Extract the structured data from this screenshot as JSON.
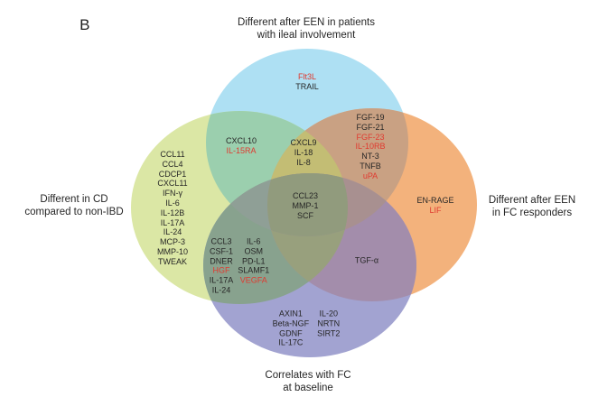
{
  "figure_label": "B",
  "colors": {
    "set_top_blue": "#aee0f3",
    "set_left_green": "#dbe7a5",
    "set_right_orange": "#f3b27c",
    "set_bottom_purple": "#a2a3d1",
    "overlap_blue_green": "#9bcfae",
    "overlap_blue_orange": "#c9a183",
    "overlap_green_purple": "#88a28e",
    "overlap_orange_purple": "#a38dab",
    "overlap_blue_green_orange": "#c3bd74",
    "overlap_green_orange_purple": "#98a07d",
    "overlap_blue_green_purple": "#8f9f96",
    "overlap_blue_orange_purple": "#a89090",
    "overlap_center_all": "#919b7d",
    "text_black": "#262626",
    "text_red": "#e0392f"
  },
  "set_labels": {
    "top": [
      "Different after EEN in patients",
      "with ileal involvement"
    ],
    "left": [
      "Different in CD",
      "compared to non-IBD"
    ],
    "right": [
      "Different after EEN",
      "in FC responders"
    ],
    "bottom": [
      "Correlates with FC",
      "at baseline"
    ]
  },
  "regions": {
    "top_only": [
      [
        {
          "t": "Flt3L",
          "red": true
        },
        {
          "t": "TRAIL"
        }
      ]
    ],
    "top_left": [
      [
        {
          "t": "CXCL10"
        },
        {
          "t": "IL-15RA",
          "red": true
        }
      ]
    ],
    "top_left_right": [
      [
        {
          "t": "CXCL9"
        },
        {
          "t": "IL-18"
        },
        {
          "t": "IL-8"
        }
      ]
    ],
    "top_right": [
      [
        {
          "t": "FGF-19"
        },
        {
          "t": "FGF-21"
        },
        {
          "t": "FGF-23",
          "red": true
        },
        {
          "t": "IL-10RB",
          "red": true
        },
        {
          "t": "NT-3"
        },
        {
          "t": "TNFB"
        },
        {
          "t": "uPA",
          "red": true
        }
      ]
    ],
    "left_only": [
      [
        {
          "t": "CCL11"
        },
        {
          "t": "CCL4"
        },
        {
          "t": "CDCP1"
        },
        {
          "t": "CXCL11"
        },
        {
          "t": "IFN-γ"
        },
        {
          "t": "IL-6"
        },
        {
          "t": "IL-12B"
        },
        {
          "t": "IL-17A"
        },
        {
          "t": "IL-24"
        },
        {
          "t": "MCP-3"
        },
        {
          "t": "MMP-10"
        },
        {
          "t": "TWEAK"
        }
      ]
    ],
    "center_all": [
      [
        {
          "t": "CCL23"
        },
        {
          "t": "MMP-1"
        },
        {
          "t": "SCF"
        }
      ]
    ],
    "left_bottom": [
      [
        {
          "t": "CCL3"
        },
        {
          "t": "CSF-1"
        },
        {
          "t": "DNER"
        },
        {
          "t": "HGF",
          "red": true
        },
        {
          "t": "IL-17A"
        },
        {
          "t": "IL-24"
        }
      ],
      [
        {
          "t": "IL-6"
        },
        {
          "t": "OSM"
        },
        {
          "t": "PD-L1"
        },
        {
          "t": "SLAMF1"
        },
        {
          "t": "VEGFA",
          "red": true
        }
      ]
    ],
    "right_bottom": [
      [
        {
          "t": "TGF-α"
        }
      ]
    ],
    "right_only": [
      [
        {
          "t": "EN-RAGE"
        },
        {
          "t": "LIF",
          "red": true
        }
      ]
    ],
    "bottom_only": [
      [
        {
          "t": "AXIN1"
        },
        {
          "t": "Beta-NGF"
        },
        {
          "t": "GDNF"
        },
        {
          "t": "IL-17C"
        }
      ],
      [
        {
          "t": "IL-20"
        },
        {
          "t": "NRTN"
        },
        {
          "t": "SIRT2"
        }
      ]
    ]
  }
}
